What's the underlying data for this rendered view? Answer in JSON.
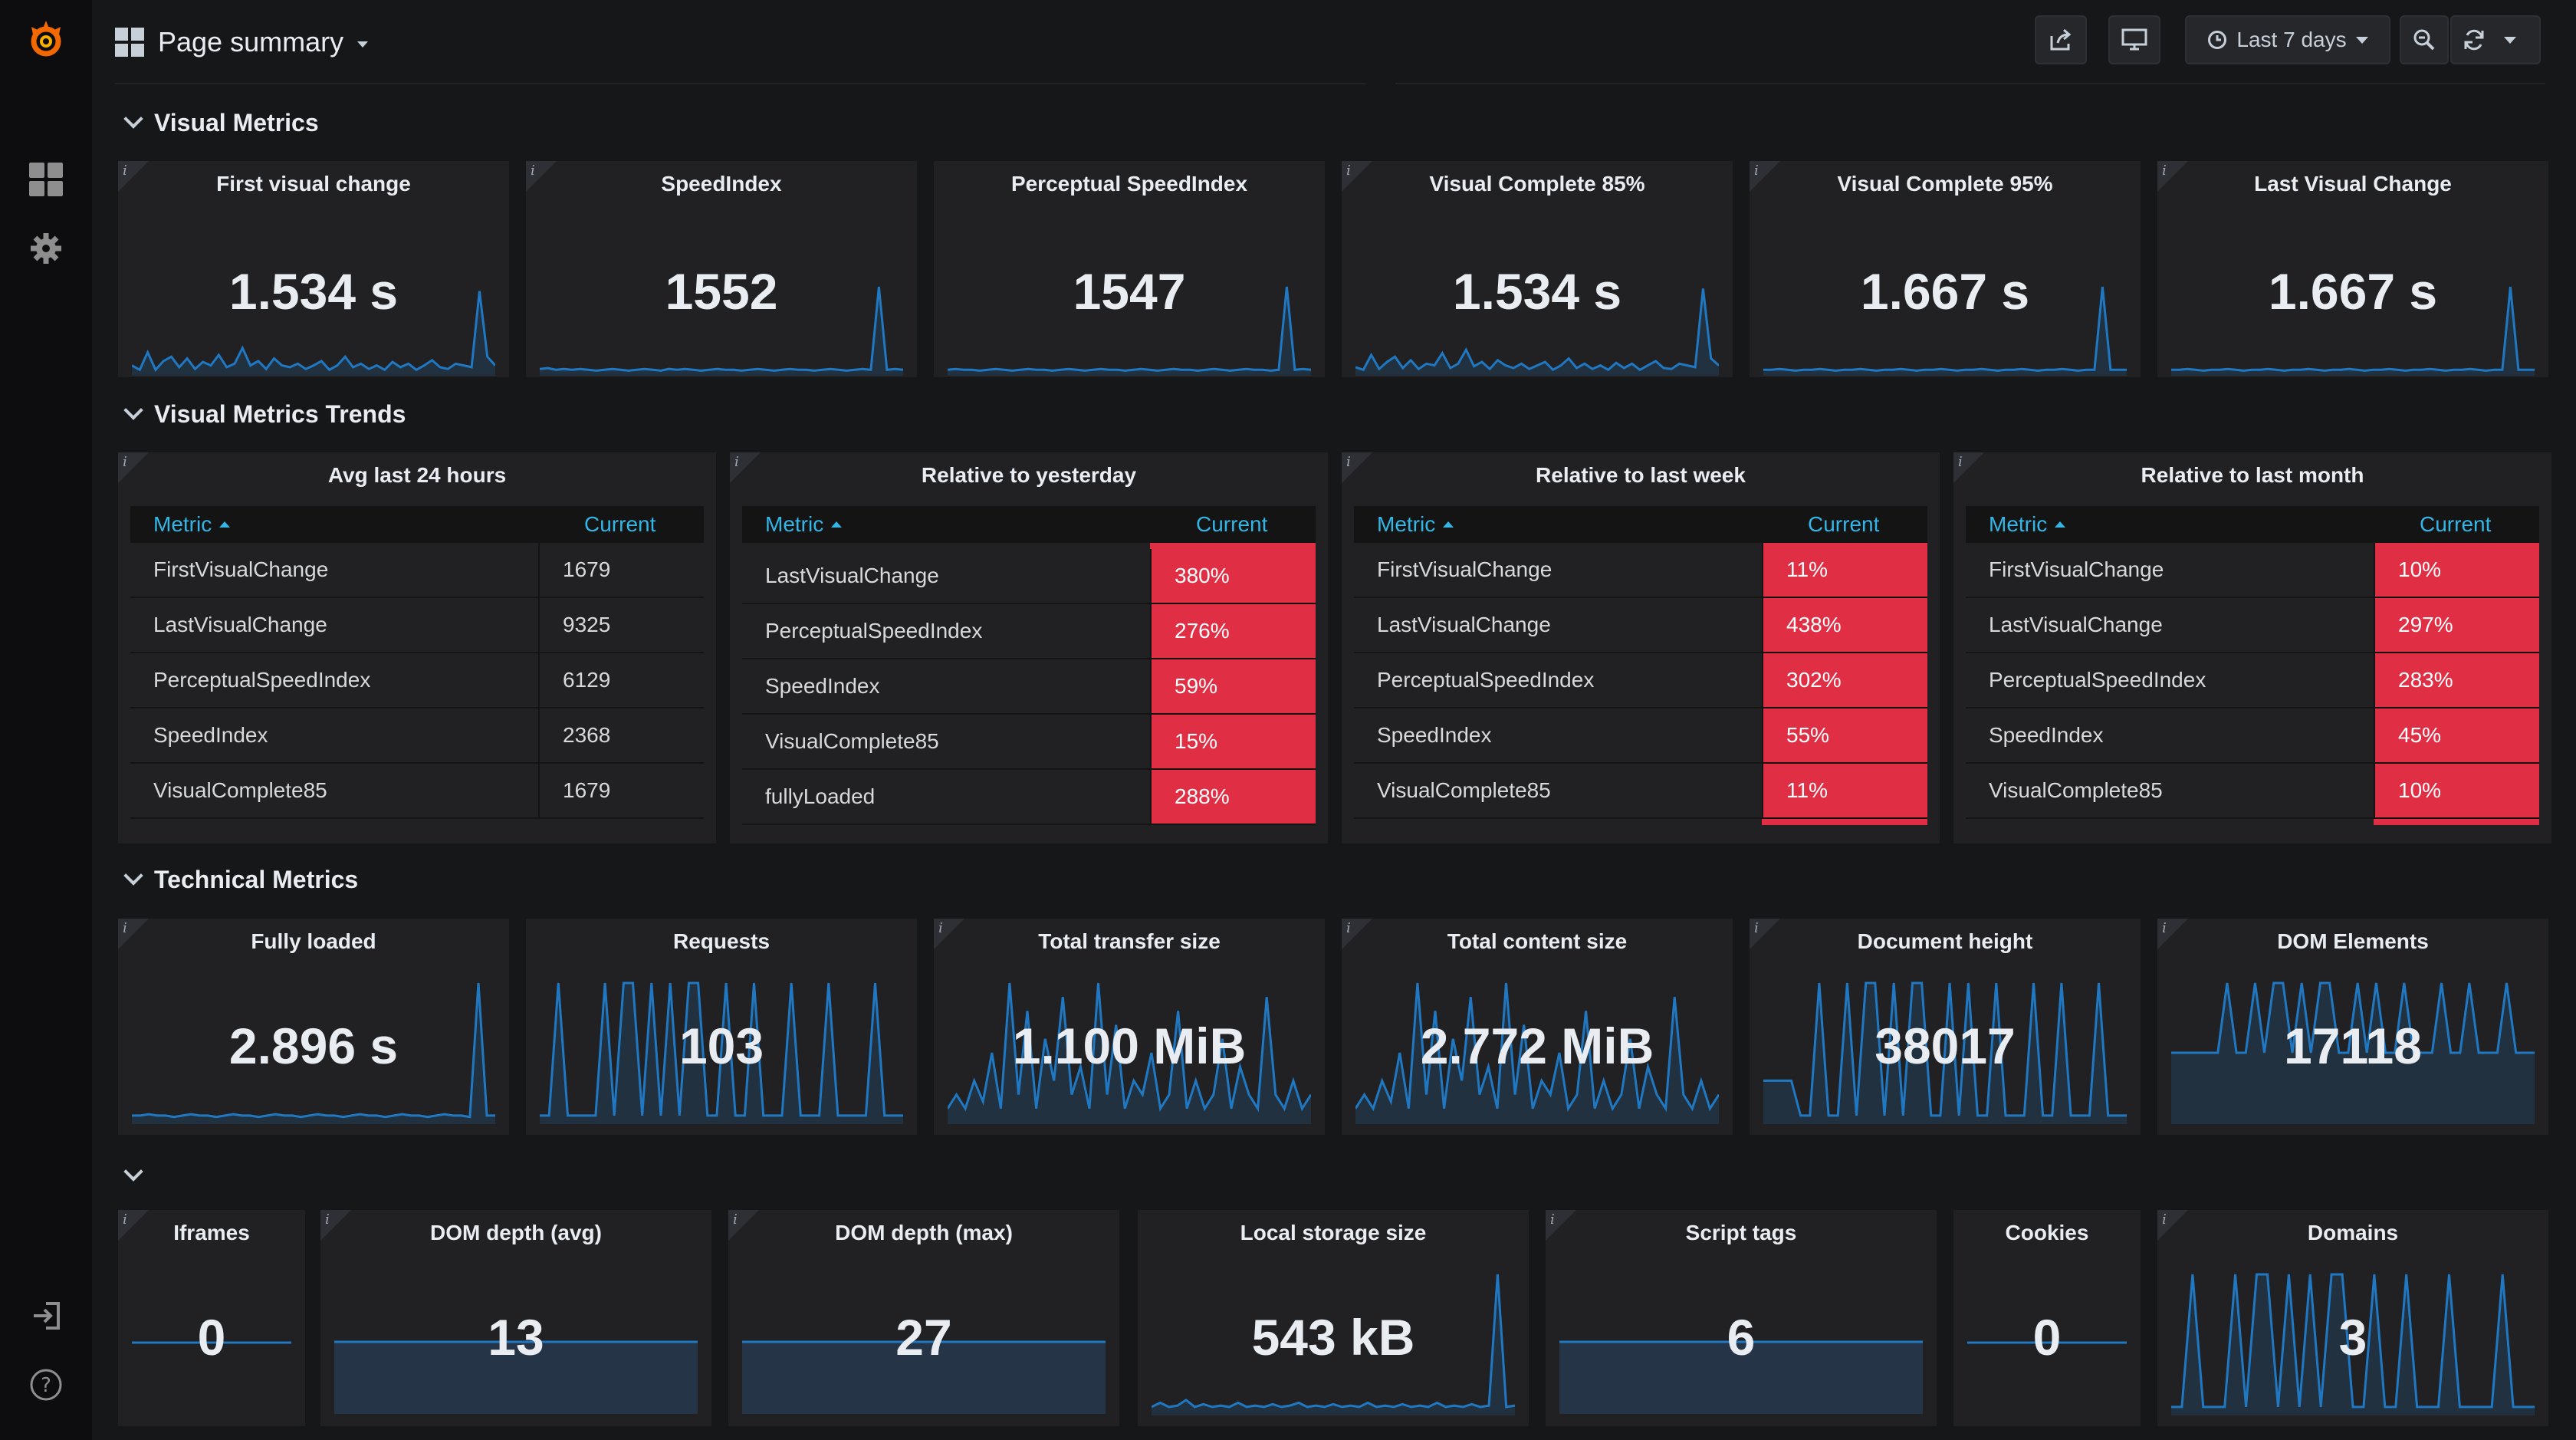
{
  "nav": {
    "dashboard_title": "Page summary",
    "time_range": "Last 7 days"
  },
  "rows": {
    "visual": "Visual Metrics",
    "trends": "Visual Metrics Trends",
    "technical": "Technical Metrics",
    "other": ""
  },
  "visual_metrics": [
    {
      "title": "First visual change",
      "value": "1.534 s",
      "spark": [
        0.1,
        0.05,
        0.25,
        0.05,
        0.15,
        0.2,
        0.08,
        0.18,
        0.06,
        0.14,
        0.1,
        0.22,
        0.08,
        0.12,
        0.3,
        0.1,
        0.15,
        0.06,
        0.18,
        0.1,
        0.08,
        0.12,
        0.06,
        0.1,
        0.15,
        0.05,
        0.1,
        0.2,
        0.08,
        0.12,
        0.06,
        0.1,
        0.05,
        0.14,
        0.08,
        0.12,
        0.05,
        0.1,
        0.16,
        0.08,
        0.06,
        0.12,
        0.1,
        0.08,
        0.95,
        0.2,
        0.1
      ]
    },
    {
      "title": "SpeedIndex",
      "value": "1552",
      "spark": [
        0.06,
        0.07,
        0.05,
        0.06,
        0.05,
        0.06,
        0.05,
        0.04,
        0.05,
        0.06,
        0.05,
        0.04,
        0.05,
        0.06,
        0.05,
        0.04,
        0.06,
        0.05,
        0.06,
        0.05,
        0.04,
        0.05,
        0.06,
        0.05,
        0.05,
        0.04,
        0.05,
        0.06,
        0.05,
        0.04,
        0.05,
        0.06,
        0.05,
        0.05,
        0.04,
        0.05,
        0.06,
        0.05,
        0.04,
        0.05,
        0.06,
        0.05,
        1.0,
        0.05,
        0.06,
        0.05
      ]
    },
    {
      "title": "Perceptual SpeedIndex",
      "value": "1547",
      "spark": [
        0.05,
        0.06,
        0.05,
        0.05,
        0.04,
        0.05,
        0.06,
        0.05,
        0.04,
        0.05,
        0.06,
        0.05,
        0.05,
        0.04,
        0.05,
        0.06,
        0.05,
        0.04,
        0.05,
        0.06,
        0.05,
        0.05,
        0.04,
        0.05,
        0.06,
        0.05,
        0.04,
        0.05,
        0.06,
        0.05,
        0.05,
        0.04,
        0.05,
        0.06,
        0.05,
        0.04,
        0.05,
        0.06,
        0.05,
        0.05,
        0.04,
        0.05,
        1.0,
        0.05,
        0.06,
        0.05
      ]
    },
    {
      "title": "Visual Complete 85%",
      "value": "1.534 s",
      "spark": [
        0.08,
        0.05,
        0.22,
        0.06,
        0.14,
        0.2,
        0.07,
        0.16,
        0.06,
        0.12,
        0.1,
        0.24,
        0.07,
        0.12,
        0.28,
        0.09,
        0.14,
        0.06,
        0.16,
        0.1,
        0.07,
        0.12,
        0.06,
        0.1,
        0.14,
        0.05,
        0.1,
        0.18,
        0.07,
        0.12,
        0.06,
        0.1,
        0.05,
        0.13,
        0.07,
        0.12,
        0.05,
        0.1,
        0.15,
        0.07,
        0.06,
        0.12,
        0.1,
        0.08,
        0.98,
        0.18,
        0.1
      ]
    },
    {
      "title": "Visual Complete 95%",
      "value": "1.667 s",
      "spark": [
        0.05,
        0.05,
        0.06,
        0.05,
        0.04,
        0.05,
        0.05,
        0.06,
        0.05,
        0.04,
        0.05,
        0.05,
        0.06,
        0.05,
        0.04,
        0.05,
        0.05,
        0.06,
        0.05,
        0.04,
        0.05,
        0.05,
        0.06,
        0.05,
        0.04,
        0.05,
        0.05,
        0.06,
        0.05,
        0.04,
        0.05,
        0.05,
        0.06,
        0.05,
        0.04,
        0.05,
        0.05,
        0.06,
        0.05,
        0.04,
        0.05,
        0.05,
        1.0,
        0.05,
        0.05,
        0.05
      ]
    },
    {
      "title": "Last Visual Change",
      "value": "1.667 s",
      "spark": [
        0.05,
        0.05,
        0.06,
        0.05,
        0.04,
        0.05,
        0.05,
        0.06,
        0.05,
        0.04,
        0.05,
        0.05,
        0.06,
        0.05,
        0.04,
        0.05,
        0.05,
        0.06,
        0.05,
        0.04,
        0.05,
        0.05,
        0.06,
        0.05,
        0.04,
        0.05,
        0.05,
        0.06,
        0.05,
        0.04,
        0.05,
        0.05,
        0.06,
        0.05,
        0.04,
        0.05,
        0.05,
        0.06,
        0.05,
        0.04,
        0.05,
        0.05,
        1.0,
        0.05,
        0.05,
        0.05
      ]
    }
  ],
  "trend_tables": [
    {
      "title": "Avg last 24 hours",
      "col_metric": "Metric",
      "col_current": "Current",
      "red": false,
      "top_sliver": false,
      "rows": [
        {
          "metric": "FirstVisualChange",
          "current": "1679"
        },
        {
          "metric": "LastVisualChange",
          "current": "9325"
        },
        {
          "metric": "PerceptualSpeedIndex",
          "current": "6129"
        },
        {
          "metric": "SpeedIndex",
          "current": "2368"
        },
        {
          "metric": "VisualComplete85",
          "current": "1679"
        }
      ]
    },
    {
      "title": "Relative to yesterday",
      "col_metric": "Metric",
      "col_current": "Current",
      "red": true,
      "top_sliver": true,
      "rows": [
        {
          "metric": "LastVisualChange",
          "current": "380%"
        },
        {
          "metric": "PerceptualSpeedIndex",
          "current": "276%"
        },
        {
          "metric": "SpeedIndex",
          "current": "59%"
        },
        {
          "metric": "VisualComplete85",
          "current": "15%"
        },
        {
          "metric": "fullyLoaded",
          "current": "288%"
        }
      ]
    },
    {
      "title": "Relative to last week",
      "col_metric": "Metric",
      "col_current": "Current",
      "red": true,
      "top_sliver": false,
      "rows": [
        {
          "metric": "FirstVisualChange",
          "current": "11%"
        },
        {
          "metric": "LastVisualChange",
          "current": "438%"
        },
        {
          "metric": "PerceptualSpeedIndex",
          "current": "302%"
        },
        {
          "metric": "SpeedIndex",
          "current": "55%"
        },
        {
          "metric": "VisualComplete85",
          "current": "11%"
        }
      ]
    },
    {
      "title": "Relative to last month",
      "col_metric": "Metric",
      "col_current": "Current",
      "red": true,
      "top_sliver": false,
      "rows": [
        {
          "metric": "FirstVisualChange",
          "current": "10%"
        },
        {
          "metric": "LastVisualChange",
          "current": "297%"
        },
        {
          "metric": "PerceptualSpeedIndex",
          "current": "283%"
        },
        {
          "metric": "SpeedIndex",
          "current": "45%"
        },
        {
          "metric": "VisualComplete85",
          "current": "10%"
        }
      ]
    }
  ],
  "technical_metrics": [
    {
      "title": "Fully loaded",
      "value": "2.896 s",
      "spark": [
        0.05,
        0.05,
        0.06,
        0.05,
        0.05,
        0.04,
        0.05,
        0.06,
        0.05,
        0.05,
        0.04,
        0.05,
        0.06,
        0.05,
        0.05,
        0.04,
        0.05,
        0.06,
        0.05,
        0.05,
        0.04,
        0.05,
        0.06,
        0.05,
        0.05,
        0.04,
        0.05,
        0.06,
        0.05,
        0.05,
        0.04,
        0.05,
        0.06,
        0.05,
        0.05,
        0.04,
        0.05,
        0.06,
        0.05,
        0.05,
        0.04,
        1.0,
        0.05,
        0.05
      ]
    },
    {
      "title": "Requests",
      "value": "103",
      "spark": [
        0.05,
        0.05,
        1.0,
        0.05,
        0.05,
        0.05,
        0.05,
        1.0,
        0.05,
        1.0,
        1.0,
        0.05,
        1.0,
        0.05,
        1.0,
        0.05,
        1.0,
        1.0,
        0.05,
        0.05,
        1.0,
        0.05,
        0.05,
        1.0,
        0.05,
        0.05,
        0.05,
        1.0,
        0.05,
        0.05,
        0.05,
        1.0,
        0.05,
        0.05,
        0.05,
        0.05,
        1.0,
        0.05,
        0.05,
        0.05
      ]
    },
    {
      "title": "Total transfer size",
      "value": "1.100 MiB",
      "spark": [
        0.1,
        0.2,
        0.1,
        0.3,
        0.15,
        0.5,
        0.1,
        1.0,
        0.2,
        0.8,
        0.1,
        0.6,
        0.3,
        0.9,
        0.2,
        0.4,
        0.1,
        1.0,
        0.2,
        0.7,
        0.1,
        0.3,
        0.2,
        0.5,
        0.1,
        0.2,
        0.8,
        0.1,
        0.3,
        0.1,
        0.2,
        0.6,
        0.1,
        0.4,
        0.2,
        0.1,
        0.9,
        0.2,
        0.1,
        0.3,
        0.1,
        0.2
      ]
    },
    {
      "title": "Total content size",
      "value": "2.772 MiB",
      "spark": [
        0.1,
        0.2,
        0.1,
        0.3,
        0.15,
        0.5,
        0.1,
        1.0,
        0.2,
        0.8,
        0.1,
        0.6,
        0.3,
        0.9,
        0.2,
        0.4,
        0.1,
        1.0,
        0.2,
        0.7,
        0.1,
        0.3,
        0.2,
        0.5,
        0.1,
        0.2,
        0.8,
        0.1,
        0.3,
        0.1,
        0.2,
        0.6,
        0.1,
        0.4,
        0.2,
        0.1,
        0.9,
        0.2,
        0.1,
        0.3,
        0.1,
        0.2
      ]
    },
    {
      "title": "Document height",
      "value": "38017",
      "spark": [
        0.3,
        0.3,
        0.3,
        0.3,
        0.05,
        0.05,
        1.0,
        0.05,
        0.05,
        1.0,
        0.05,
        1.0,
        1.0,
        0.05,
        1.0,
        0.05,
        1.0,
        1.0,
        0.05,
        0.05,
        1.0,
        0.05,
        1.0,
        0.05,
        0.05,
        1.0,
        0.05,
        0.05,
        0.05,
        1.0,
        0.05,
        0.05,
        1.0,
        0.05,
        0.05,
        0.05,
        1.0,
        0.05,
        0.05,
        0.05
      ]
    },
    {
      "title": "DOM Elements",
      "value": "17118",
      "spark": [
        0.5,
        0.5,
        0.5,
        0.5,
        0.5,
        0.5,
        1.0,
        0.5,
        0.5,
        1.0,
        0.5,
        1.0,
        1.0,
        0.5,
        1.0,
        0.5,
        1.0,
        1.0,
        0.5,
        0.5,
        1.0,
        0.5,
        1.0,
        0.5,
        0.5,
        1.0,
        0.5,
        0.5,
        0.5,
        1.0,
        0.5,
        0.5,
        1.0,
        0.5,
        0.5,
        0.5,
        1.0,
        0.5,
        0.5,
        0.5
      ]
    }
  ],
  "other_metrics": [
    {
      "title": "Iframes",
      "value": "0",
      "spark_type": "flat"
    },
    {
      "title": "DOM depth (avg)",
      "value": "13",
      "spark_type": "area"
    },
    {
      "title": "DOM depth (max)",
      "value": "27",
      "spark_type": "area"
    },
    {
      "title": "Local storage size",
      "value": "543 kB",
      "spark_type": "line",
      "spark": [
        0.05,
        0.08,
        0.05,
        0.06,
        0.1,
        0.05,
        0.07,
        0.05,
        0.06,
        0.05,
        0.08,
        0.05,
        0.06,
        0.05,
        0.07,
        0.05,
        0.06,
        0.08,
        0.05,
        0.06,
        0.05,
        0.07,
        0.05,
        0.06,
        0.05,
        0.08,
        0.05,
        0.06,
        0.05,
        0.07,
        0.05,
        0.06,
        0.05,
        0.08,
        0.05,
        0.06,
        0.05,
        0.07,
        0.05,
        0.06,
        1.0,
        0.05,
        0.06
      ]
    },
    {
      "title": "Script tags",
      "value": "6",
      "spark_type": "area"
    },
    {
      "title": "Cookies",
      "value": "0",
      "spark_type": "flat"
    },
    {
      "title": "Domains",
      "value": "3",
      "spark_type": "line",
      "spark": [
        0.05,
        0.05,
        1.0,
        0.05,
        0.05,
        0.05,
        1.0,
        0.05,
        1.0,
        1.0,
        0.05,
        1.0,
        0.05,
        1.0,
        0.05,
        1.0,
        1.0,
        0.05,
        0.05,
        1.0,
        0.05,
        0.05,
        1.0,
        0.05,
        0.05,
        0.05,
        1.0,
        0.05,
        0.05,
        0.05,
        0.05,
        1.0,
        0.05,
        0.05,
        0.05
      ]
    }
  ],
  "colors": {
    "accent": "#33b5e5",
    "spark": "#1f78c1",
    "red": "#e02f44",
    "panel": "#212124",
    "bg": "#161719"
  }
}
